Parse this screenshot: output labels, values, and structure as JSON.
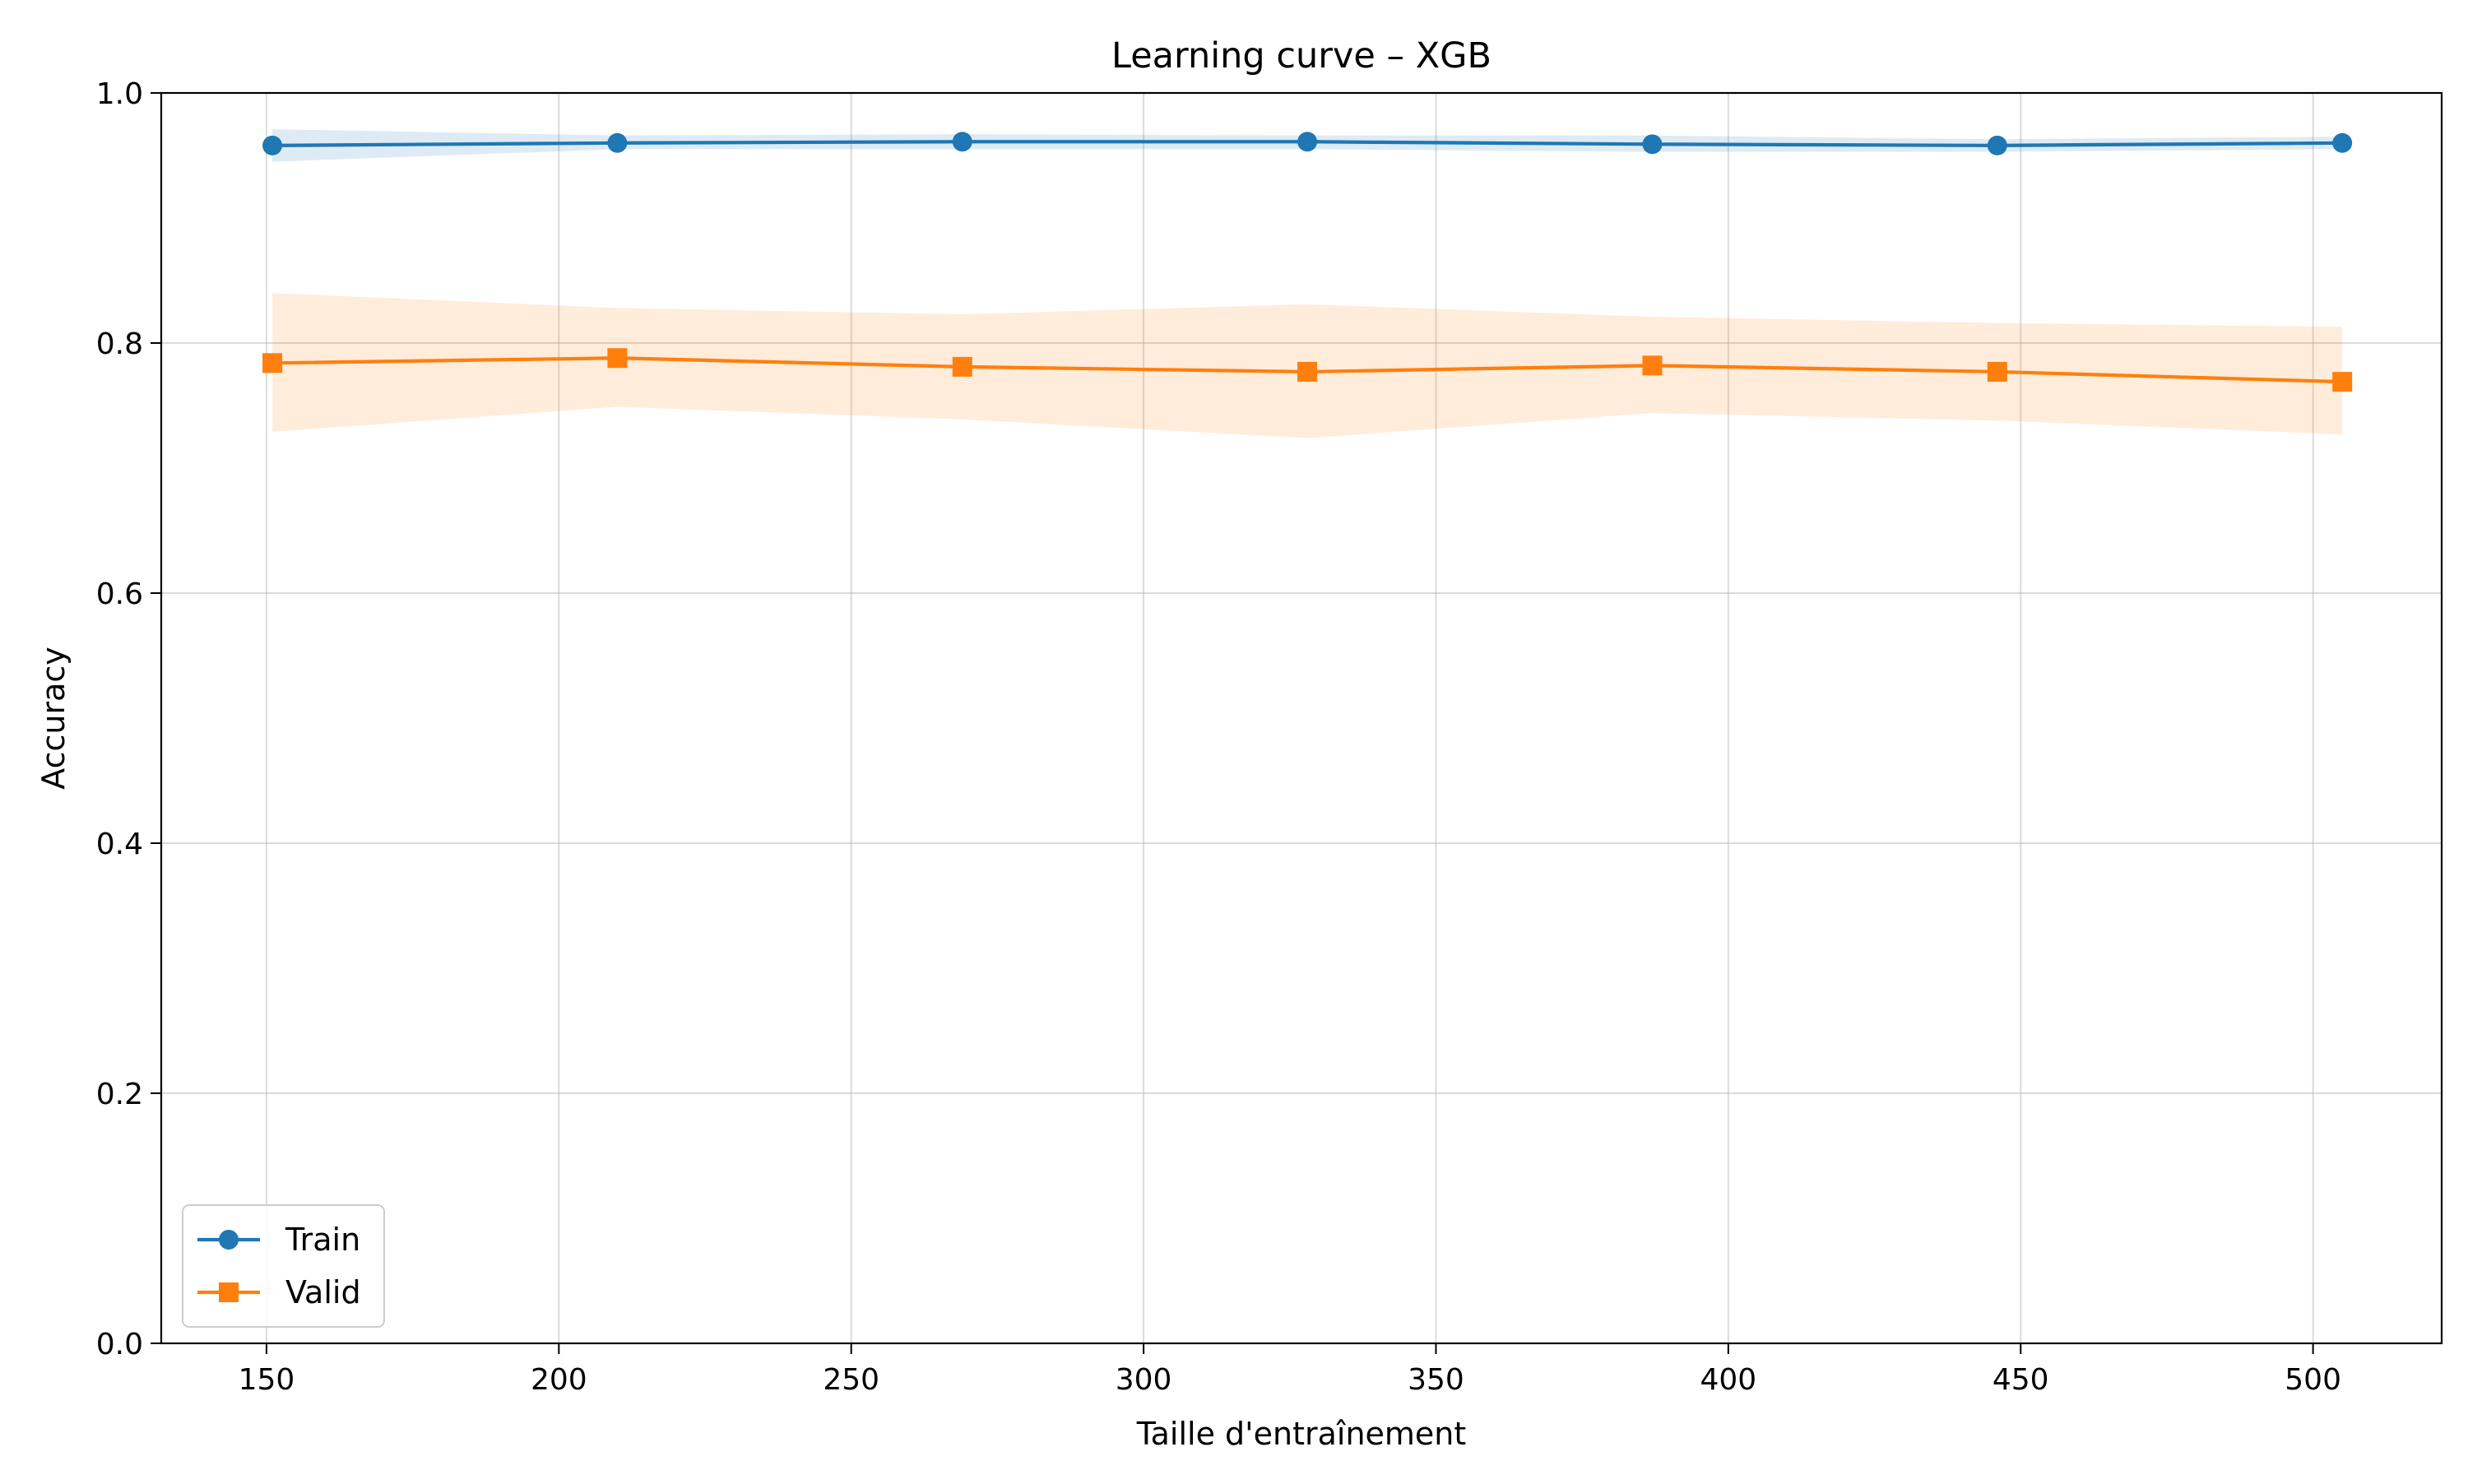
{
  "chart_data": {
    "type": "line",
    "title": "Learning curve – XGB",
    "xlabel": "Taille d'entraînement",
    "ylabel": "Accuracy",
    "xlim": [
      132,
      522
    ],
    "ylim": [
      0.0,
      1.0
    ],
    "xticks": [
      150,
      200,
      250,
      300,
      350,
      400,
      450,
      500
    ],
    "xtick_labels": [
      "150",
      "200",
      "250",
      "300",
      "350",
      "400",
      "450",
      "500"
    ],
    "yticks": [
      0.0,
      0.2,
      0.4,
      0.6,
      0.8,
      1.0
    ],
    "ytick_labels": [
      "0.0",
      "0.2",
      "0.4",
      "0.6",
      "0.8",
      "1.0"
    ],
    "grid": true,
    "legend_position": "lower-left",
    "x": [
      151,
      210,
      269,
      328,
      387,
      446,
      505
    ],
    "series": [
      {
        "name": "Train",
        "marker": "circle",
        "color": "#1f77b4",
        "band_color": "#1f77b4",
        "values": [
          0.958,
          0.96,
          0.961,
          0.961,
          0.959,
          0.958,
          0.96
        ],
        "lower": [
          0.945,
          0.955,
          0.955,
          0.955,
          0.953,
          0.953,
          0.955
        ],
        "upper": [
          0.971,
          0.966,
          0.967,
          0.966,
          0.966,
          0.963,
          0.965
        ]
      },
      {
        "name": "Valid",
        "marker": "square",
        "color": "#ff7f0e",
        "band_color": "#ff7f0e",
        "values": [
          0.784,
          0.788,
          0.781,
          0.777,
          0.782,
          0.777,
          0.769
        ],
        "lower": [
          0.729,
          0.749,
          0.739,
          0.724,
          0.744,
          0.738,
          0.727
        ],
        "upper": [
          0.84,
          0.828,
          0.823,
          0.831,
          0.821,
          0.816,
          0.813
        ]
      }
    ]
  }
}
